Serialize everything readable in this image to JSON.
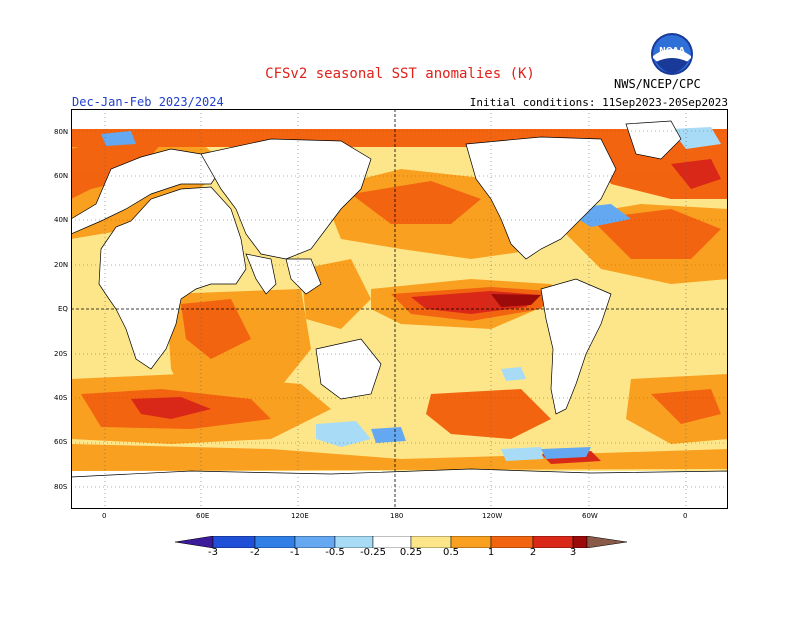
{
  "title": "CFSv2 seasonal SST anomalies (K)",
  "period": "Dec-Jan-Feb 2023/2024",
  "initial_conditions": "Initial conditions: 11Sep2023-20Sep2023",
  "organization": "NWS/NCEP/CPC",
  "logo_text": "NOAA",
  "lat_labels": [
    "80N",
    "60N",
    "40N",
    "20N",
    "EQ",
    "20S",
    "40S",
    "60S",
    "80S"
  ],
  "lon_labels": [
    "0",
    "60E",
    "120E",
    "180",
    "120W",
    "60W",
    "0"
  ],
  "legend": {
    "labels": [
      "-3",
      "-2",
      "-1",
      "-0.5",
      "-0.25",
      "0.25",
      "0.5",
      "1",
      "2",
      "3"
    ],
    "colors": [
      "#3b1b9a",
      "#1f4fd6",
      "#2f7fe6",
      "#63a8f0",
      "#a8dcf6",
      "#ffffff",
      "#fde68a",
      "#f9a020",
      "#f26410",
      "#d92818",
      "#9c0a0a",
      "#8a5a48"
    ]
  }
}
